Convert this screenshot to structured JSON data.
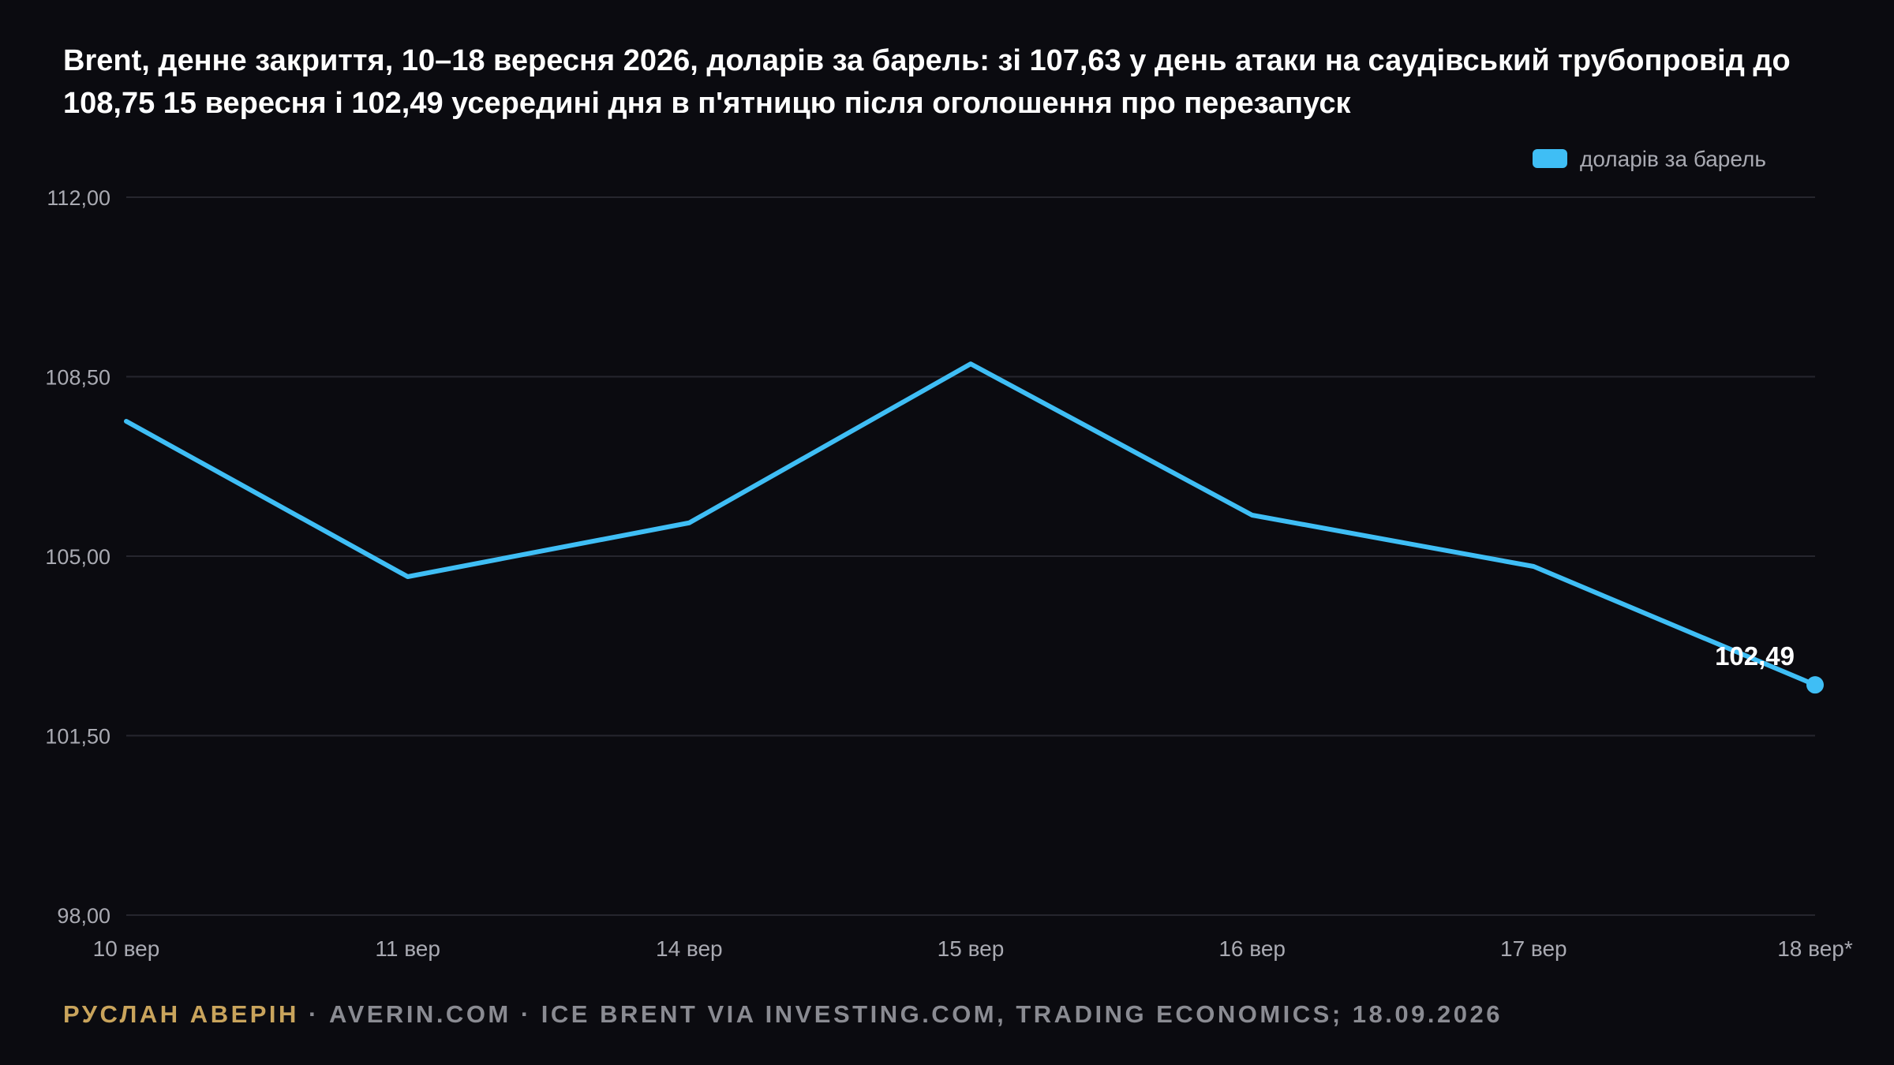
{
  "chart_data": {
    "type": "line",
    "title": "Brent, денне закриття, 10–18 вересня 2026, доларів за барель: зі 107,63 у день атаки на саудівський трубопровід до 108,75 15 вересня і 102,49 усередині дня в п'ятницю після оголошення про перезапуск",
    "categories": [
      "10 вер",
      "11 вер",
      "14 вер",
      "15 вер",
      "16 вер",
      "17 вер",
      "18 вер*"
    ],
    "series": [
      {
        "name": "доларів за барель",
        "color": "#3fbef5",
        "values": [
          107.63,
          104.6,
          105.65,
          108.75,
          105.8,
          104.8,
          102.49
        ]
      }
    ],
    "ylim": [
      98,
      112
    ],
    "yticks": [
      "112,00",
      "108,50",
      "105,00",
      "101,50",
      "98,00"
    ],
    "ytick_values": [
      112,
      108.5,
      105,
      101.5,
      98
    ],
    "end_label": "102,49",
    "grid": true,
    "legend_position": "top-right",
    "xlabel": "",
    "ylabel": ""
  },
  "footer": {
    "author": "РУСЛАН АВЕРІН",
    "rest": " · AVERIN.COM · ICE BRENT VIA INVESTING.COM, TRADING ECONOMICS; 18.09.2026"
  },
  "colors": {
    "background": "#0b0b10",
    "grid": "#26262e",
    "axis_text": "#a9aab2",
    "author": "#c9a45c"
  }
}
